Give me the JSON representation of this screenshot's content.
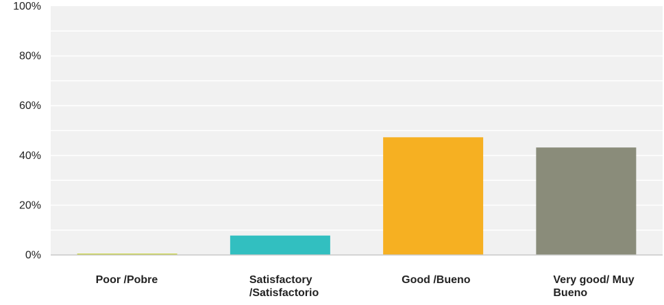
{
  "chart_data": {
    "type": "bar",
    "categories": [
      "Poor /Pobre",
      "Satisfactory /Satisfactorio",
      "Good /Bueno",
      "Very good/ Muy Bueno"
    ],
    "category_lines": [
      [
        "Poor /Pobre"
      ],
      [
        "Satisfactory",
        "/Satisfactorio"
      ],
      [
        "Good /Bueno"
      ],
      [
        "Very good/ Muy",
        "Bueno"
      ]
    ],
    "values": [
      0.5,
      7.8,
      47.3,
      43.2
    ],
    "colors": [
      "#c8d23c",
      "#32bfc0",
      "#f6b022",
      "#8a8c7a"
    ],
    "ylim": [
      0,
      100
    ],
    "yticks": [
      0,
      20,
      40,
      60,
      80,
      100
    ],
    "ytick_labels": [
      "0%",
      "20%",
      "40%",
      "60%",
      "80%",
      "100%"
    ],
    "grid": true,
    "plot_background": "#f1f1f1",
    "grid_color": "#ffffff"
  }
}
